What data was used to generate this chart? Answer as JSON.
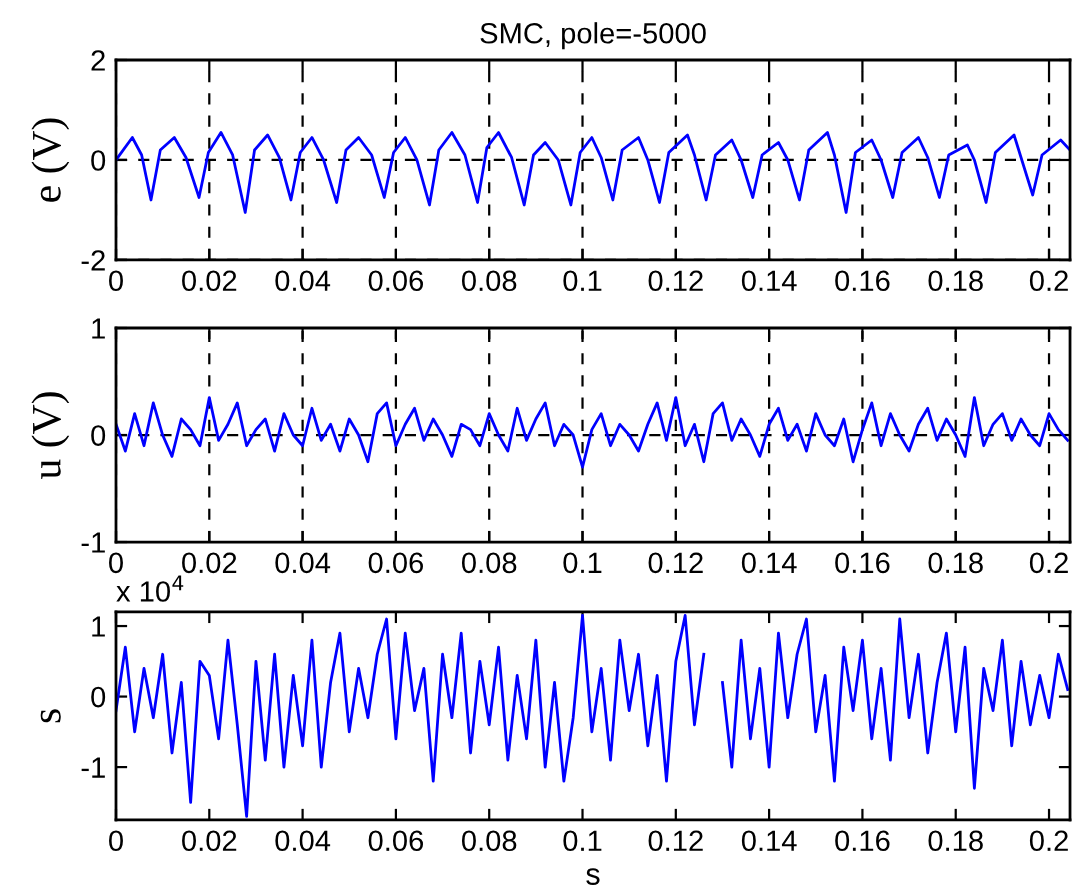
{
  "chart_data": [
    {
      "type": "line",
      "title": "SMC, pole=-5000",
      "ylabel": "e (V)",
      "xlim": [
        0,
        0.2045
      ],
      "xticks": [
        0,
        0.02,
        0.04,
        0.06,
        0.08,
        0.1,
        0.12,
        0.14,
        0.16,
        0.18,
        0.2
      ],
      "ylim": [
        -2,
        2
      ],
      "yticks": [
        -2,
        0,
        2
      ],
      "grid": true,
      "line_style": "solid",
      "marker": "none",
      "series": [
        {
          "color": "#0000ff",
          "x": [
            0,
            0.0035,
            0.0055,
            0.0075,
            0.0095,
            0.0125,
            0.015,
            0.0178,
            0.0198,
            0.0225,
            0.025,
            0.0277,
            0.0297,
            0.0325,
            0.035,
            0.0375,
            0.0395,
            0.042,
            0.0445,
            0.0473,
            0.0493,
            0.052,
            0.0548,
            0.0575,
            0.0595,
            0.062,
            0.0645,
            0.0672,
            0.0692,
            0.072,
            0.0748,
            0.0775,
            0.0795,
            0.082,
            0.0848,
            0.0875,
            0.0895,
            0.092,
            0.0948,
            0.0975,
            0.0995,
            0.102,
            0.104,
            0.1065,
            0.1085,
            0.112,
            0.114,
            0.1165,
            0.1185,
            0.1225,
            0.124,
            0.1265,
            0.1285,
            0.132,
            0.134,
            0.1365,
            0.1385,
            0.142,
            0.144,
            0.1465,
            0.1485,
            0.1525,
            0.154,
            0.1565,
            0.1585,
            0.162,
            0.164,
            0.1665,
            0.1685,
            0.172,
            0.174,
            0.1765,
            0.1785,
            0.1825,
            0.184,
            0.1865,
            0.1885,
            0.1925,
            0.194,
            0.1965,
            0.1985,
            0.2025,
            0.2045
          ],
          "values": [
            0,
            0.45,
            0.1,
            -0.8,
            0.2,
            0.45,
            0.05,
            -0.75,
            0.15,
            0.55,
            0.1,
            -1.05,
            0.2,
            0.5,
            0.05,
            -0.8,
            0.15,
            0.45,
            0.0,
            -0.85,
            0.2,
            0.45,
            0.1,
            -0.75,
            0.15,
            0.45,
            0.0,
            -0.9,
            0.2,
            0.55,
            0.1,
            -0.85,
            0.25,
            0.55,
            0.05,
            -0.9,
            0.1,
            0.35,
            0.0,
            -0.9,
            0.15,
            0.45,
            0.05,
            -0.8,
            0.2,
            0.45,
            0.0,
            -0.85,
            0.15,
            0.5,
            0.1,
            -0.8,
            0.1,
            0.4,
            0.0,
            -0.75,
            0.1,
            0.35,
            0.0,
            -0.8,
            0.2,
            0.55,
            0.1,
            -1.05,
            0.15,
            0.4,
            0.0,
            -0.75,
            0.15,
            0.45,
            0.05,
            -0.75,
            0.1,
            0.3,
            0.0,
            -0.85,
            0.15,
            0.5,
            0.05,
            -0.7,
            0.1,
            0.4,
            0.2
          ]
        }
      ]
    },
    {
      "type": "line",
      "ylabel": "u (V)",
      "xlim": [
        0,
        0.2045
      ],
      "xticks": [
        0,
        0.02,
        0.04,
        0.06,
        0.08,
        0.1,
        0.12,
        0.14,
        0.16,
        0.18,
        0.2
      ],
      "ylim": [
        -1,
        1
      ],
      "yticks": [
        -1,
        0,
        1
      ],
      "grid": true,
      "line_style": "solid",
      "marker": "none",
      "series": [
        {
          "color": "#0000ff",
          "x": [
            0,
            0.002,
            0.004,
            0.006,
            0.008,
            0.01,
            0.012,
            0.014,
            0.016,
            0.018,
            0.02,
            0.022,
            0.024,
            0.026,
            0.028,
            0.03,
            0.032,
            0.034,
            0.036,
            0.038,
            0.04,
            0.042,
            0.044,
            0.046,
            0.048,
            0.05,
            0.052,
            0.054,
            0.056,
            0.058,
            0.06,
            0.062,
            0.064,
            0.066,
            0.068,
            0.07,
            0.072,
            0.074,
            0.076,
            0.078,
            0.08,
            0.082,
            0.084,
            0.086,
            0.088,
            0.09,
            0.092,
            0.094,
            0.096,
            0.098,
            0.1,
            0.102,
            0.104,
            0.106,
            0.108,
            0.11,
            0.112,
            0.114,
            0.116,
            0.118,
            0.12,
            0.122,
            0.124,
            0.126,
            0.128,
            0.13,
            0.132,
            0.134,
            0.136,
            0.138,
            0.14,
            0.142,
            0.144,
            0.146,
            0.148,
            0.15,
            0.152,
            0.154,
            0.156,
            0.158,
            0.16,
            0.162,
            0.164,
            0.166,
            0.168,
            0.17,
            0.172,
            0.174,
            0.176,
            0.178,
            0.18,
            0.182,
            0.184,
            0.186,
            0.188,
            0.19,
            0.192,
            0.194,
            0.196,
            0.198,
            0.2,
            0.202,
            0.204
          ],
          "values": [
            0.1,
            -0.15,
            0.2,
            -0.1,
            0.3,
            0.0,
            -0.2,
            0.15,
            0.05,
            -0.1,
            0.35,
            -0.05,
            0.1,
            0.3,
            -0.1,
            0.05,
            0.15,
            -0.15,
            0.2,
            0.0,
            -0.1,
            0.25,
            -0.05,
            0.1,
            -0.15,
            0.15,
            0.0,
            -0.25,
            0.2,
            0.3,
            -0.1,
            0.1,
            0.25,
            -0.05,
            0.15,
            0.0,
            -0.2,
            0.1,
            0.05,
            -0.1,
            0.2,
            0.0,
            -0.15,
            0.25,
            -0.05,
            0.15,
            0.3,
            -0.1,
            0.1,
            0.0,
            -0.3,
            0.05,
            0.2,
            -0.1,
            0.1,
            0.0,
            -0.15,
            0.1,
            0.3,
            -0.05,
            0.35,
            -0.1,
            0.1,
            -0.25,
            0.2,
            0.3,
            -0.05,
            0.15,
            0.0,
            -0.2,
            0.1,
            0.25,
            -0.05,
            0.1,
            -0.15,
            0.2,
            0.0,
            -0.1,
            0.15,
            -0.25,
            0.05,
            0.3,
            -0.1,
            0.2,
            0.0,
            -0.15,
            0.1,
            0.25,
            -0.05,
            0.15,
            0.0,
            -0.2,
            0.35,
            -0.1,
            0.1,
            0.2,
            -0.05,
            0.15,
            0.0,
            -0.1,
            0.2,
            0.05,
            -0.05
          ]
        }
      ]
    },
    {
      "type": "line",
      "ylabel": "s",
      "xlabel": "s",
      "annotations": [
        "x 10$^{4}$"
      ],
      "xlim": [
        0,
        0.2045
      ],
      "xticks": [
        0,
        0.02,
        0.04,
        0.06,
        0.08,
        0.1,
        0.12,
        0.14,
        0.16,
        0.18,
        0.2
      ],
      "ylim": [
        -1.75,
        1.2
      ],
      "yticks": [
        -1,
        0,
        1
      ],
      "line_style": "solid",
      "marker": "none",
      "series": [
        {
          "color": "#0000ff",
          "x": [
            0,
            0.002,
            0.004,
            0.006,
            0.008,
            0.01,
            0.012,
            0.014,
            0.016,
            0.018,
            0.02,
            0.022,
            0.024,
            0.026,
            0.028,
            0.03,
            0.032,
            0.034,
            0.036,
            0.038,
            0.04,
            0.042,
            0.044,
            0.046,
            0.048,
            0.05,
            0.052,
            0.054,
            0.056,
            0.058,
            0.06,
            0.062,
            0.064,
            0.066,
            0.068,
            0.07,
            0.072,
            0.074,
            0.076,
            0.078,
            0.08,
            0.082,
            0.084,
            0.086,
            0.088,
            0.09,
            0.092,
            0.094,
            0.096,
            0.098,
            0.1,
            0.102,
            0.104,
            0.106,
            0.108,
            0.11,
            0.112,
            0.114,
            0.116,
            0.118,
            0.12,
            0.122,
            0.124,
            0.126,
            0.128,
            0.13,
            0.132,
            0.134,
            0.136,
            0.138,
            0.14,
            0.142,
            0.144,
            0.146,
            0.148,
            0.15,
            0.152,
            0.154,
            0.156,
            0.158,
            0.16,
            0.162,
            0.164,
            0.166,
            0.168,
            0.17,
            0.172,
            0.174,
            0.176,
            0.178,
            0.18,
            0.182,
            0.184,
            0.186,
            0.188,
            0.19,
            0.192,
            0.194,
            0.196,
            0.198,
            0.2,
            0.202,
            0.204
          ],
          "values": [
            -0.2,
            0.7,
            -0.5,
            0.4,
            -0.3,
            0.6,
            -0.8,
            0.2,
            -1.5,
            0.5,
            0.3,
            -0.6,
            0.8,
            -0.4,
            -1.7,
            0.5,
            -0.9,
            0.6,
            -1.0,
            0.3,
            -0.7,
            0.8,
            -1.0,
            0.2,
            0.9,
            -0.5,
            0.4,
            -0.3,
            0.6,
            1.1,
            -0.6,
            0.9,
            -0.2,
            0.4,
            -1.2,
            0.6,
            -0.3,
            0.9,
            -0.8,
            0.5,
            -0.4,
            0.7,
            -0.9,
            0.3,
            -0.6,
            0.8,
            -1.0,
            0.2,
            -1.2,
            -0.3,
            1.15,
            -0.5,
            0.4,
            -0.9,
            0.8,
            -0.2,
            0.6,
            -0.7,
            0.3,
            -1.2,
            0.5,
            1.15,
            -0.4,
            0.6,
            null,
            0.2,
            -1.0,
            0.8,
            -0.6,
            0.4,
            -1.0,
            0.9,
            -0.3,
            0.6,
            1.1,
            -0.5,
            0.3,
            -1.2,
            0.7,
            -0.2,
            0.8,
            -0.6,
            0.4,
            -0.9,
            1.1,
            -0.3,
            0.6,
            -0.8,
            0.2,
            0.9,
            -0.5,
            0.7,
            -1.3,
            0.4,
            -0.2,
            0.8,
            -0.7,
            0.5,
            -0.4,
            0.3,
            -0.3,
            0.6,
            0.1
          ]
        }
      ]
    }
  ]
}
